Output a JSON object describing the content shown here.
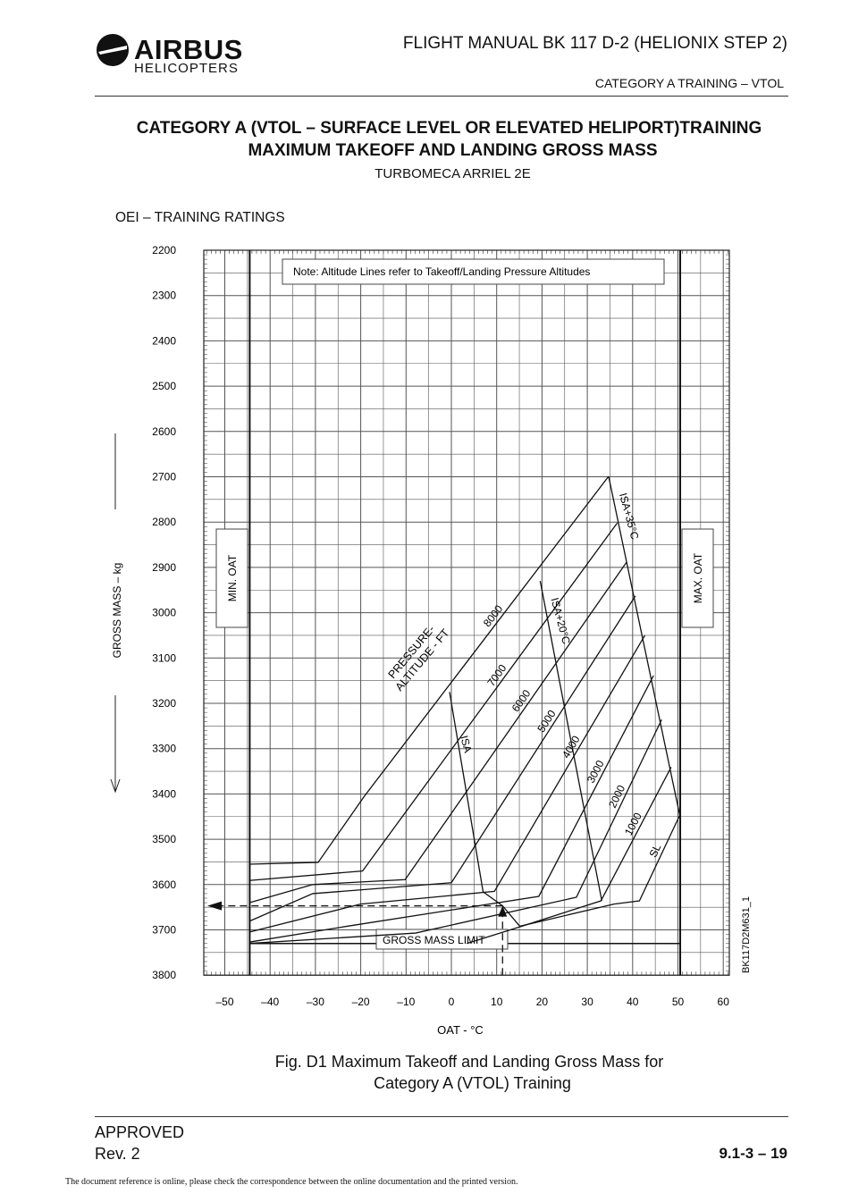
{
  "header": {
    "logo_brand": "AIRBUS",
    "logo_sub": "HELICOPTERS",
    "manual_title": "FLIGHT MANUAL  BK 117 D-2 (HELIONIX STEP 2)",
    "section": "CATEGORY A TRAINING – VTOL"
  },
  "title": {
    "line1": "CATEGORY A (VTOL – SURFACE LEVEL OR ELEVATED HELIPORT)TRAINING",
    "line2": "MAXIMUM TAKEOFF AND LANDING GROSS MASS",
    "line3": "TURBOMECA ARRIEL 2E"
  },
  "chart_subtitle": "OEI – TRAINING RATINGS",
  "chart_data": {
    "type": "line",
    "xlabel": "OAT - °C",
    "ylabel": "GROSS MASS – kg",
    "xlim": [
      -55,
      62
    ],
    "ylim": [
      3800,
      2200
    ],
    "x_ticks": [
      -50,
      -40,
      -30,
      -20,
      -10,
      0,
      10,
      20,
      30,
      40,
      50,
      60
    ],
    "x_tick_labels": [
      "–50",
      "–40",
      "–30",
      "–20",
      "–10",
      "0",
      "10",
      "20",
      "30",
      "40",
      "50",
      "60"
    ],
    "y_ticks": [
      2200,
      2300,
      2400,
      2500,
      2600,
      2700,
      2800,
      2900,
      3000,
      3100,
      3200,
      3300,
      3400,
      3500,
      3600,
      3700,
      3800
    ],
    "y_tick_labels": [
      "2200",
      "2300",
      "2400",
      "2500",
      "2600",
      "2700",
      "2800",
      "2900",
      "3000",
      "3100",
      "3200",
      "3300",
      "3400",
      "3500",
      "3600",
      "3700",
      "3800"
    ],
    "note": "Note: Altitude Lines refer to Takeoff/Landing Pressure Altitudes",
    "min_oat_label": "MIN. OAT",
    "max_oat_label": "MAX. OAT",
    "min_oat": -44.5,
    "max_oat": 50.5,
    "gross_mass_limit_label": "GROSS MASS LIMIT",
    "gross_mass_limit": 3730,
    "pressure_altitude_label": [
      "PRESSURE-",
      "ALTITUDE - FT"
    ],
    "figure_id": "BK117D2M631_1",
    "series": [
      {
        "name": "8000",
        "points": [
          [
            -44.6,
            3555
          ],
          [
            -29.4,
            3551
          ],
          [
            -19.2,
            3405
          ],
          [
            34.7,
            2699
          ]
        ]
      },
      {
        "name": "7000",
        "points": [
          [
            -44.6,
            3591
          ],
          [
            -19.6,
            3570
          ],
          [
            36.6,
            2802
          ]
        ]
      },
      {
        "name": "6000",
        "points": [
          [
            -44.6,
            3640
          ],
          [
            -30.6,
            3600
          ],
          [
            -10.2,
            3589
          ],
          [
            38.7,
            2888
          ]
        ]
      },
      {
        "name": "5000",
        "points": [
          [
            -44.6,
            3681
          ],
          [
            -30.6,
            3620
          ],
          [
            0,
            3596
          ],
          [
            40.6,
            2963
          ]
        ]
      },
      {
        "name": "4000",
        "points": [
          [
            -44.6,
            3705
          ],
          [
            -20,
            3643
          ],
          [
            9.5,
            3615
          ],
          [
            42.7,
            3050
          ]
        ]
      },
      {
        "name": "3000",
        "points": [
          [
            -44.6,
            3727
          ],
          [
            -23,
            3692
          ],
          [
            19.3,
            3626
          ],
          [
            44.6,
            3139
          ]
        ]
      },
      {
        "name": "2000",
        "points": [
          [
            -44.6,
            3730
          ],
          [
            -7.9,
            3707
          ],
          [
            27.6,
            3628
          ],
          [
            46.4,
            3236
          ]
        ]
      },
      {
        "name": "1000",
        "points": [
          [
            3.4,
            3730
          ],
          [
            15.5,
            3692
          ],
          [
            33,
            3636
          ],
          [
            48.5,
            3341
          ]
        ]
      },
      {
        "name": "SL",
        "points": [
          [
            15.1,
            3692
          ],
          [
            35.9,
            3643
          ],
          [
            41.5,
            3636
          ],
          [
            50.4,
            3447
          ]
        ]
      }
    ],
    "temperature_lines": [
      {
        "name": "ISA",
        "points": [
          [
            -0.4,
            3175
          ],
          [
            7,
            3616
          ],
          [
            11.3,
            3647
          ],
          [
            15.1,
            3692
          ]
        ]
      },
      {
        "name": "ISA+20°C",
        "points": [
          [
            19.6,
            2930
          ],
          [
            33.2,
            3636
          ]
        ]
      },
      {
        "name": "ISA+35°C",
        "points": [
          [
            34.7,
            2699
          ],
          [
            50.4,
            3447
          ]
        ]
      }
    ],
    "example": {
      "oat": 11.3,
      "gross_mass": 3647
    }
  },
  "caption": {
    "line1": "Fig. D1  Maximum Takeoff and Landing Gross Mass for",
    "line2": "Category A (VTOL)  Training"
  },
  "footer": {
    "approved": "APPROVED",
    "rev": "Rev.   2",
    "page": "9.1-3 – 19",
    "notice": "The document reference is online, please check the correspondence between the online documentation and the printed version."
  }
}
